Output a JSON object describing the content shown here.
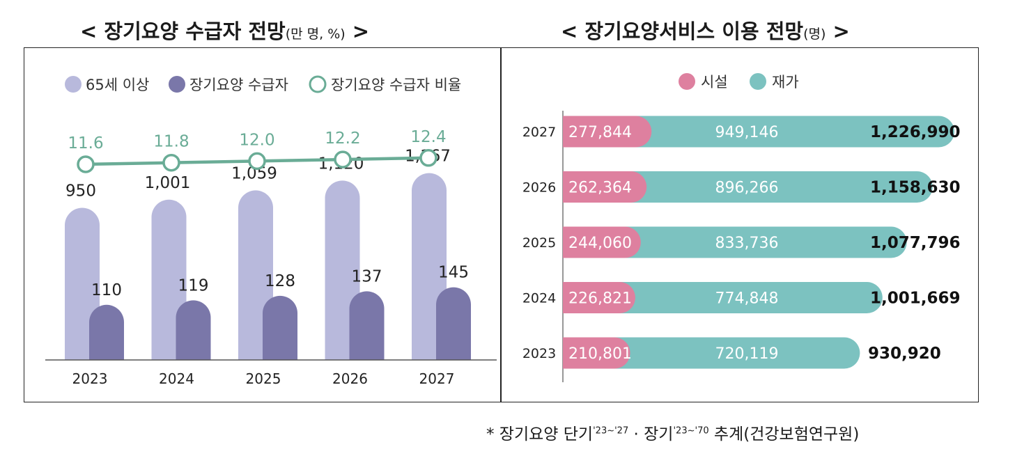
{
  "left": {
    "title": "< 장기요양 수급자 전망",
    "title_unit": "(만 명, %)",
    "title_end": " >",
    "legend": [
      "65세 이상",
      "장기요양 수급자",
      "장기요양 수급자 비율"
    ]
  },
  "right": {
    "title": "< 장기요양서비스 이용 전망",
    "title_unit": "(명)",
    "title_end": " >",
    "legend": [
      "시설",
      "재가"
    ]
  },
  "footnote": {
    "prefix": "* 장기요양 단기",
    "sup1": "'23~'27",
    "mid": " · 장기",
    "sup2": "'23~'70",
    "suffix": " 추계(건강보험연구원)"
  },
  "colors": {
    "senior": "#b8b9dc",
    "recipient": "#7a77a9",
    "ratio": "#6aac96",
    "facility": "#de809f",
    "home": "#7cc2c0"
  },
  "chart_data": [
    {
      "type": "bar",
      "categories": [
        "2023",
        "2024",
        "2025",
        "2026",
        "2027"
      ],
      "series": [
        {
          "name": "65세 이상",
          "values": [
            950,
            1001,
            1059,
            1120,
            1167
          ],
          "labels": [
            "950",
            "1,001",
            "1,059",
            "1,120",
            "1,167"
          ]
        },
        {
          "name": "장기요양 수급자",
          "values": [
            110,
            119,
            128,
            137,
            145
          ],
          "labels": [
            "110",
            "119",
            "128",
            "137",
            "145"
          ]
        },
        {
          "name": "장기요양 수급자 비율",
          "type": "line",
          "values": [
            11.6,
            11.8,
            12.0,
            12.2,
            12.4
          ],
          "labels": [
            "11.6",
            "11.8",
            "12.0",
            "12.2",
            "12.4"
          ]
        }
      ],
      "legend_position": "top"
    },
    {
      "type": "bar",
      "orientation": "horizontal",
      "stacked": true,
      "categories": [
        "2027",
        "2026",
        "2025",
        "2024",
        "2023"
      ],
      "series": [
        {
          "name": "시설",
          "values": [
            277844,
            262364,
            244060,
            226821,
            210801
          ],
          "labels": [
            "277,844",
            "262,364",
            "244,060",
            "226,821",
            "210,801"
          ]
        },
        {
          "name": "재가",
          "values": [
            949146,
            896266,
            833736,
            774848,
            720119
          ],
          "labels": [
            "949,146",
            "896,266",
            "833,736",
            "774,848",
            "720,119"
          ]
        }
      ],
      "totals": [
        "1,226,990",
        "1,158,630",
        "1,077,796",
        "1,001,669",
        "930,920"
      ],
      "legend_position": "top"
    }
  ]
}
